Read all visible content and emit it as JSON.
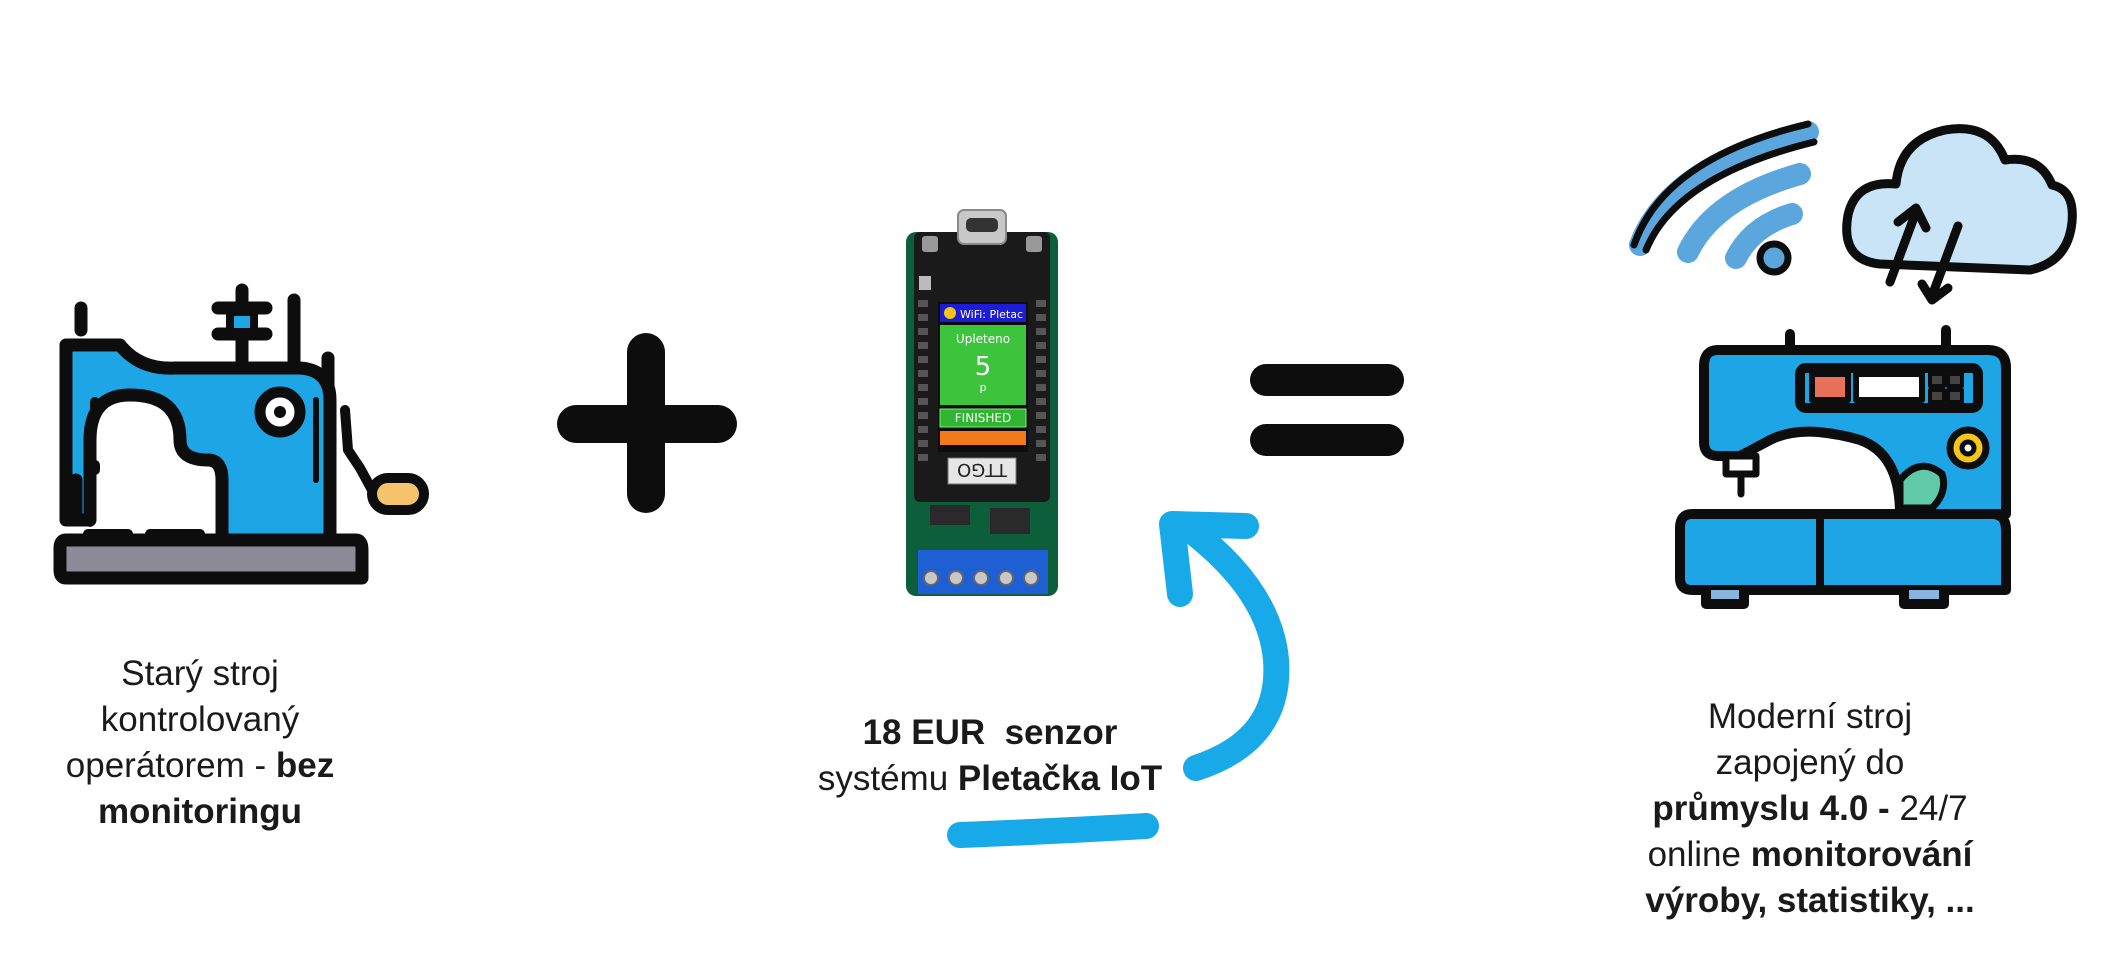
{
  "old_machine": {
    "caption_line1": "Starý stroj",
    "caption_line2": "kontrolovaný",
    "caption_line3_light": "operátorem - ",
    "caption_line3_bold": "bez",
    "caption_line4_bold": "monitoringu"
  },
  "operators": {
    "plus": "+",
    "equals": "="
  },
  "sensor": {
    "screen": {
      "wifi_label": "WiFi: Pletac",
      "status_title": "Upleteno",
      "count": "5",
      "unit": "p",
      "status_badge": "FINISHED"
    },
    "chip_label": "TTGO",
    "caption_line1_bold": "18 EUR  senzor",
    "caption_line2_light": "systému ",
    "caption_line2_bold": "Pletačka IoT"
  },
  "modern_machine": {
    "caption_line1": "Moderní stroj",
    "caption_line2": "zapojený do",
    "caption_line3_bold": "průmyslu 4.0 - ",
    "caption_line3_light": "24/7",
    "caption_line4_light": "online ",
    "caption_line4_bold": "monitorování",
    "caption_line5_bold": "výroby, statistiky, ..."
  },
  "colors": {
    "machine_blue": "#1ea5e6",
    "outline": "#0d0d0d",
    "base_gray": "#8c8a96",
    "handle_orange": "#f5c36b",
    "arrow_blue": "#18a9e8",
    "wifi_blue": "#5ba7dd",
    "cloud_blue": "#c9e3f7",
    "screen_green": "#3cc43c",
    "board_green": "#0c5f3a"
  }
}
